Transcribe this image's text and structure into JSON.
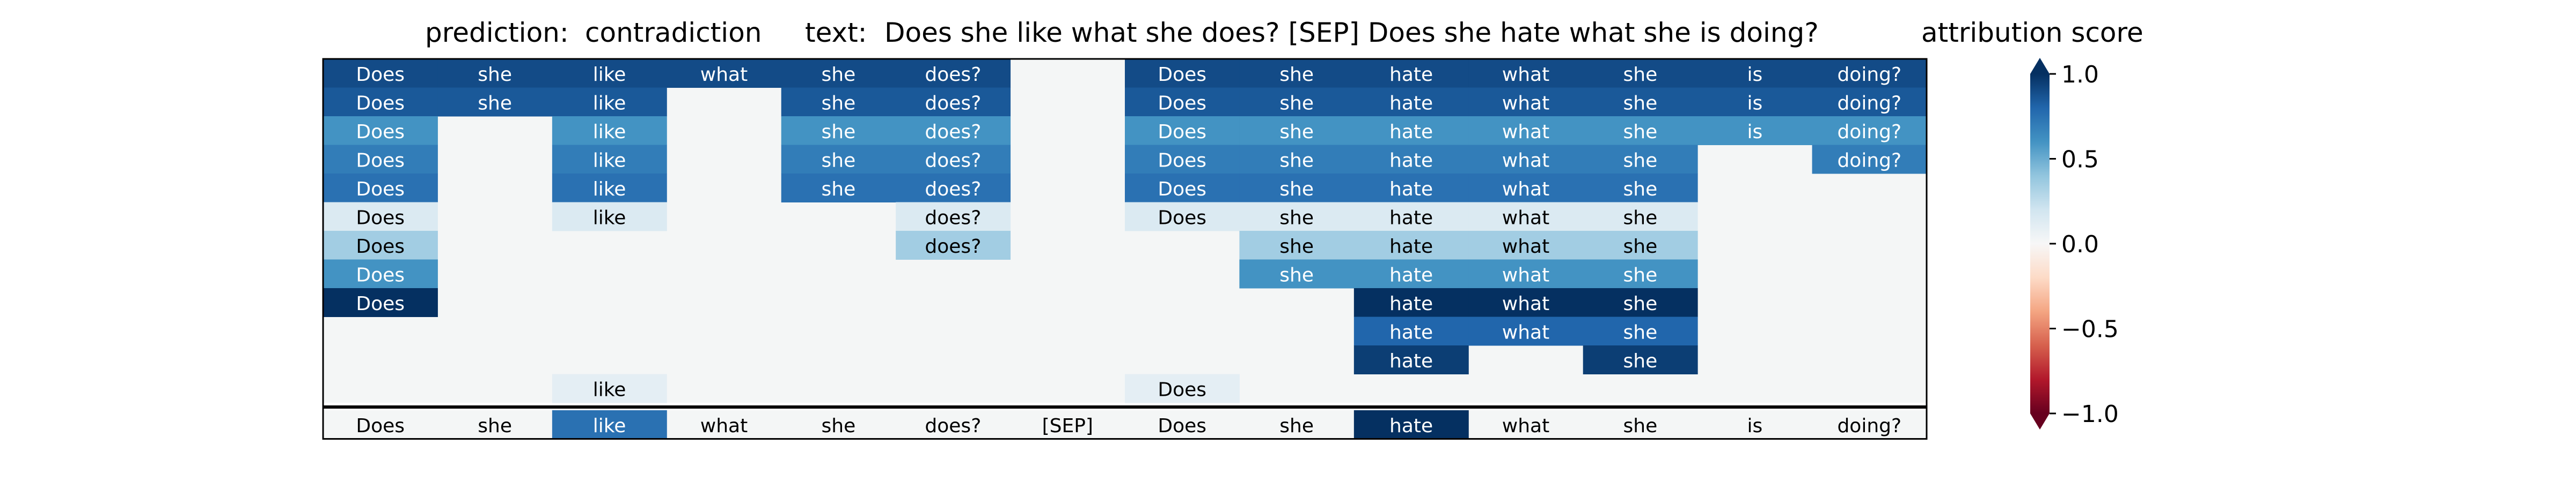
{
  "chart_data": {
    "type": "heatmap",
    "prediction_label": "prediction:",
    "prediction_value": "contradiction",
    "text_label": "text:",
    "text_value": "Does she like what she does? [SEP] Does she hate what she is doing?",
    "colorbar_title": "attribution score",
    "colorbar_ticks": [
      "1.0",
      "0.5",
      "0.0",
      "−0.5",
      "−1.0"
    ],
    "colorbar_tick_values": [
      1.0,
      0.5,
      0.0,
      -0.5,
      -1.0
    ],
    "vmin": -1.0,
    "vmax": 1.0,
    "colormap": "RdBu",
    "colors": {
      "pos_strong": "#053061",
      "neutral": "#f4f6f6",
      "neg_strong": "#67001f"
    },
    "tokens": [
      "Does",
      "she",
      "like",
      "what",
      "she",
      "does?",
      "[SEP]",
      "Does",
      "she",
      "hate",
      "what",
      "she",
      "is",
      "doing?"
    ],
    "token_scores": [
      0.0,
      0.0,
      0.75,
      0.0,
      0.0,
      0.0,
      0.0,
      0.0,
      0.0,
      1.0,
      0.0,
      0.0,
      0.0,
      0.0
    ],
    "rows": [
      [
        0.9,
        0.9,
        0.9,
        0.9,
        0.9,
        0.9,
        null,
        0.9,
        0.9,
        0.9,
        0.9,
        0.9,
        0.9,
        0.9
      ],
      [
        0.85,
        0.85,
        0.85,
        null,
        0.85,
        0.85,
        null,
        0.85,
        0.85,
        0.85,
        0.85,
        0.85,
        0.85,
        0.85
      ],
      [
        0.6,
        null,
        0.6,
        null,
        0.6,
        0.6,
        null,
        0.6,
        0.6,
        0.6,
        0.6,
        0.6,
        0.6,
        0.6
      ],
      [
        0.7,
        null,
        0.7,
        null,
        0.7,
        0.7,
        null,
        0.7,
        0.7,
        0.7,
        0.7,
        0.7,
        null,
        0.7
      ],
      [
        0.75,
        null,
        0.75,
        null,
        0.75,
        0.75,
        null,
        0.75,
        0.75,
        0.75,
        0.75,
        0.75,
        null,
        null
      ],
      [
        0.15,
        null,
        0.15,
        null,
        null,
        0.15,
        null,
        0.15,
        0.15,
        0.15,
        0.15,
        0.15,
        null,
        null
      ],
      [
        0.35,
        null,
        null,
        null,
        null,
        0.35,
        null,
        null,
        0.35,
        0.35,
        0.35,
        0.35,
        null,
        null
      ],
      [
        0.6,
        null,
        null,
        null,
        null,
        null,
        null,
        null,
        0.6,
        0.6,
        0.6,
        0.6,
        null,
        null
      ],
      [
        1.0,
        null,
        null,
        null,
        null,
        null,
        null,
        null,
        null,
        1.0,
        1.0,
        1.0,
        null,
        null
      ],
      [
        null,
        null,
        null,
        null,
        null,
        null,
        null,
        null,
        null,
        0.8,
        0.8,
        0.8,
        null,
        null
      ],
      [
        null,
        null,
        null,
        null,
        null,
        null,
        null,
        null,
        null,
        0.95,
        null,
        0.95,
        null,
        null
      ],
      [
        null,
        null,
        0.1,
        null,
        null,
        null,
        null,
        0.1,
        null,
        null,
        null,
        null,
        null,
        null
      ]
    ]
  }
}
